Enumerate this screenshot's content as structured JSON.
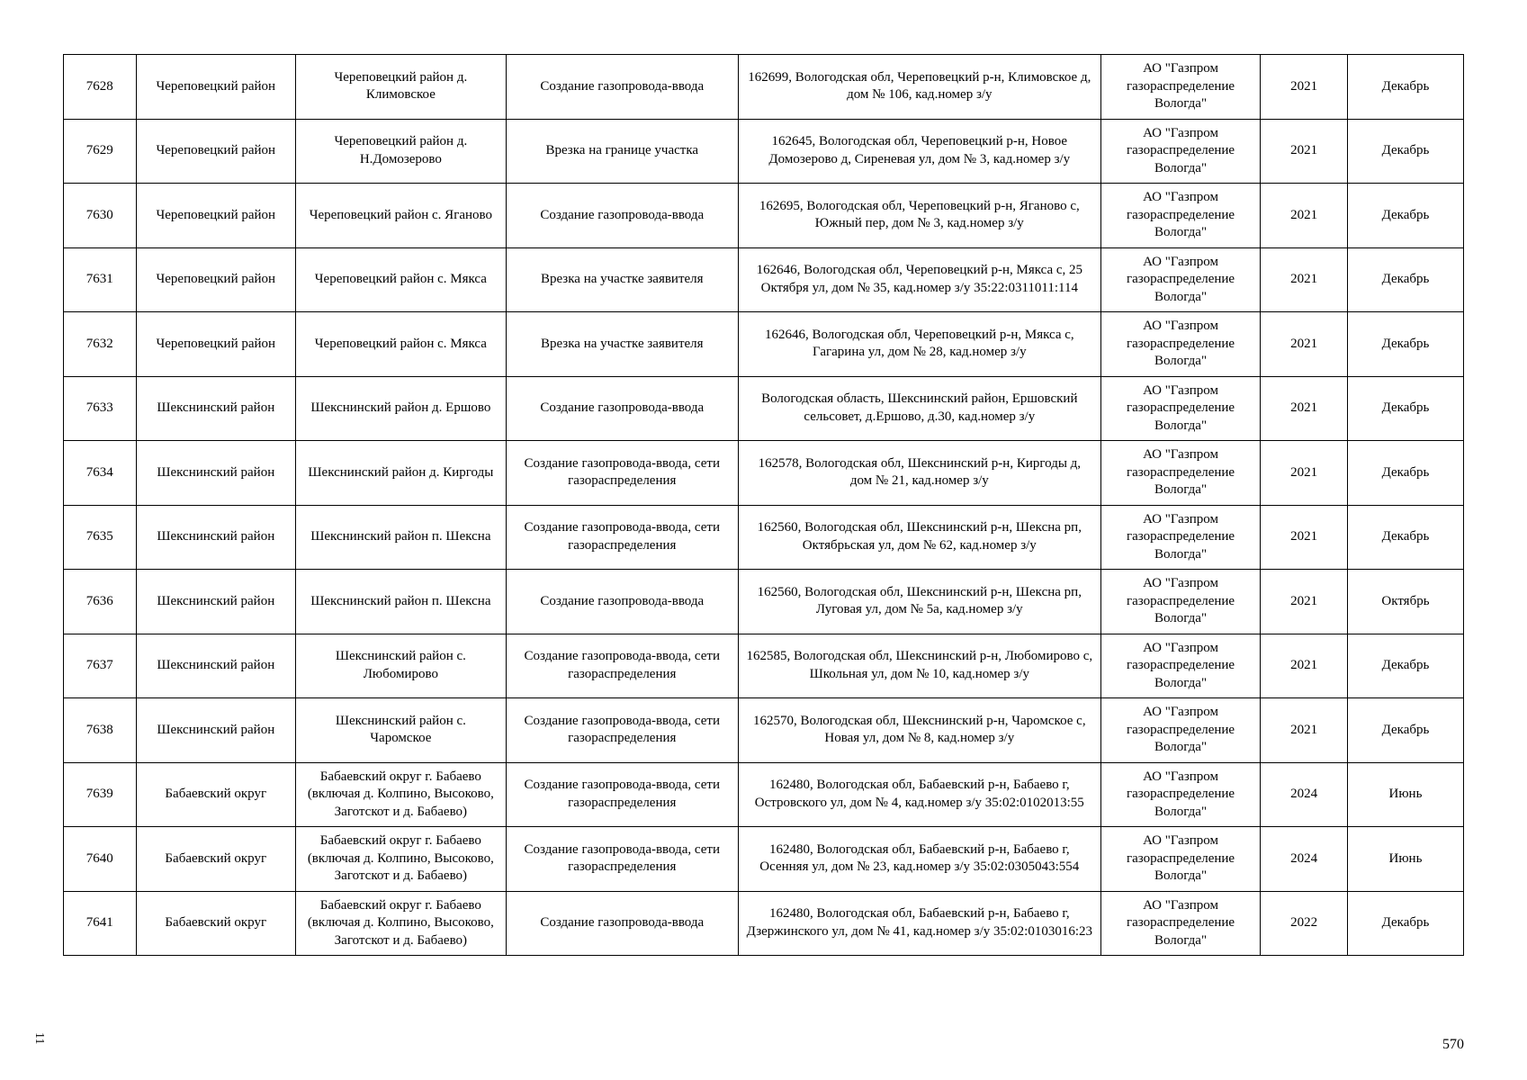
{
  "page_number": "570",
  "side_mark": "11",
  "rows": [
    {
      "num": "7628",
      "district": "Череповецкий район",
      "location": "Череповецкий район д. Климовское",
      "work": "Создание газопровода-ввода",
      "address": "162699, Вологодская обл, Череповецкий р-н, Климовское д, дом № 106, кад.номер з/у",
      "org": "АО \"Газпром газораспределение Вологда\"",
      "year": "2021",
      "month": "Декабрь"
    },
    {
      "num": "7629",
      "district": "Череповецкий район",
      "location": "Череповецкий район д. Н.Домозерово",
      "work": "Врезка на границе участка",
      "address": "162645, Вологодская обл, Череповецкий р-н, Новое Домозерово д, Сиреневая ул, дом № 3, кад.номер з/у",
      "org": "АО \"Газпром газораспределение Вологда\"",
      "year": "2021",
      "month": "Декабрь"
    },
    {
      "num": "7630",
      "district": "Череповецкий район",
      "location": "Череповецкий район с. Яганово",
      "work": "Создание газопровода-ввода",
      "address": "162695, Вологодская обл, Череповецкий р-н, Яганово с, Южный пер, дом № 3, кад.номер з/у",
      "org": "АО \"Газпром газораспределение Вологда\"",
      "year": "2021",
      "month": "Декабрь"
    },
    {
      "num": "7631",
      "district": "Череповецкий район",
      "location": "Череповецкий район с. Мякса",
      "work": "Врезка на участке заявителя",
      "address": "162646, Вологодская обл, Череповецкий р-н, Мякса с, 25 Октября ул, дом № 35, кад.номер з/у 35:22:0311011:114",
      "org": "АО \"Газпром газораспределение Вологда\"",
      "year": "2021",
      "month": "Декабрь"
    },
    {
      "num": "7632",
      "district": "Череповецкий район",
      "location": "Череповецкий район с. Мякса",
      "work": "Врезка на участке заявителя",
      "address": "162646, Вологодская обл, Череповецкий р-н, Мякса с, Гагарина ул, дом № 28, кад.номер з/у",
      "org": "АО \"Газпром газораспределение Вологда\"",
      "year": "2021",
      "month": "Декабрь"
    },
    {
      "num": "7633",
      "district": "Шекснинский район",
      "location": "Шекснинский район д. Ершово",
      "work": "Создание газопровода-ввода",
      "address": "Вологодская область, Шекснинский район, Ершовский сельсовет, д.Ершово, д.30, кад.номер з/у",
      "org": "АО \"Газпром газораспределение Вологда\"",
      "year": "2021",
      "month": "Декабрь"
    },
    {
      "num": "7634",
      "district": "Шекснинский район",
      "location": "Шекснинский район д. Киргоды",
      "work": "Создание газопровода-ввода, сети газораспределения",
      "address": "162578, Вологодская обл, Шекснинский р-н, Киргоды д, дом № 21, кад.номер з/у",
      "org": "АО \"Газпром газораспределение Вологда\"",
      "year": "2021",
      "month": "Декабрь"
    },
    {
      "num": "7635",
      "district": "Шекснинский район",
      "location": "Шекснинский район п. Шексна",
      "work": "Создание газопровода-ввода, сети газораспределения",
      "address": "162560, Вологодская обл, Шекснинский р-н, Шексна рп, Октябрьская ул, дом № 62, кад.номер з/у",
      "org": "АО \"Газпром газораспределение Вологда\"",
      "year": "2021",
      "month": "Декабрь"
    },
    {
      "num": "7636",
      "district": "Шекснинский район",
      "location": "Шекснинский район п. Шексна",
      "work": "Создание газопровода-ввода",
      "address": "162560, Вологодская обл, Шекснинский р-н, Шексна рп, Луговая ул, дом № 5а, кад.номер з/у",
      "org": "АО \"Газпром газораспределение Вологда\"",
      "year": "2021",
      "month": "Октябрь"
    },
    {
      "num": "7637",
      "district": "Шекснинский район",
      "location": "Шекснинский район с. Любомирово",
      "work": "Создание газопровода-ввода, сети газораспределения",
      "address": "162585, Вологодская обл, Шекснинский р-н, Любомирово с, Школьная ул, дом № 10, кад.номер з/у",
      "org": "АО \"Газпром газораспределение Вологда\"",
      "year": "2021",
      "month": "Декабрь"
    },
    {
      "num": "7638",
      "district": "Шекснинский район",
      "location": "Шекснинский район с. Чаромское",
      "work": "Создание газопровода-ввода, сети газораспределения",
      "address": "162570, Вологодская обл, Шекснинский р-н, Чаромское с, Новая ул, дом № 8, кад.номер з/у",
      "org": "АО \"Газпром газораспределение Вологда\"",
      "year": "2021",
      "month": "Декабрь"
    },
    {
      "num": "7639",
      "district": "Бабаевский округ",
      "location": "Бабаевский округ г. Бабаево (включая д. Колпино, Высоково, Заготскот и д. Бабаево)",
      "work": "Создание газопровода-ввода, сети газораспределения",
      "address": "162480, Вологодская обл, Бабаевский р-н, Бабаево г, Островского ул, дом № 4, кад.номер з/у 35:02:0102013:55",
      "org": "АО \"Газпром газораспределение Вологда\"",
      "year": "2024",
      "month": "Июнь"
    },
    {
      "num": "7640",
      "district": "Бабаевский округ",
      "location": "Бабаевский округ г. Бабаево (включая д. Колпино, Высоково, Заготскот и д. Бабаево)",
      "work": "Создание газопровода-ввода, сети газораспределения",
      "address": "162480, Вологодская обл, Бабаевский р-н, Бабаево г, Осенняя ул, дом № 23, кад.номер з/у 35:02:0305043:554",
      "org": "АО \"Газпром газораспределение Вологда\"",
      "year": "2024",
      "month": "Июнь"
    },
    {
      "num": "7641",
      "district": "Бабаевский округ",
      "location": "Бабаевский округ г. Бабаево (включая д. Колпино, Высоково, Заготскот и д. Бабаево)",
      "work": "Создание газопровода-ввода",
      "address": "162480, Вологодская обл, Бабаевский р-н, Бабаево г, Дзержинского ул, дом № 41, кад.номер з/у 35:02:0103016:23",
      "org": "АО \"Газпром газораспределение Вологда\"",
      "year": "2022",
      "month": "Декабрь"
    }
  ]
}
